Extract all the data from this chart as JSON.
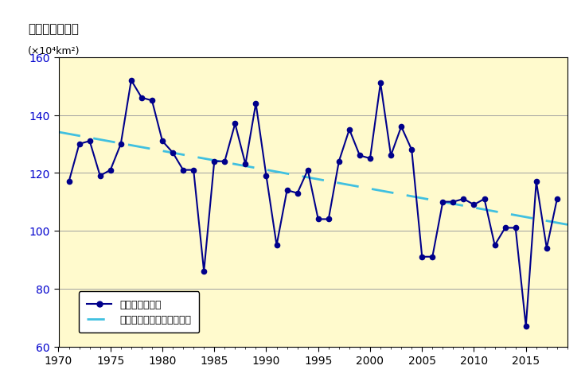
{
  "years": [
    1971,
    1972,
    1973,
    1974,
    1975,
    1976,
    1977,
    1978,
    1979,
    1980,
    1981,
    1982,
    1983,
    1984,
    1985,
    1986,
    1987,
    1988,
    1989,
    1990,
    1991,
    1992,
    1993,
    1994,
    1995,
    1996,
    1997,
    1998,
    1999,
    2000,
    2001,
    2002,
    2003,
    2004,
    2005,
    2006,
    2007,
    2008,
    2009,
    2010,
    2011,
    2012,
    2013,
    2014,
    2015,
    2016,
    2017,
    2018
  ],
  "values": [
    117,
    130,
    131,
    119,
    121,
    130,
    152,
    146,
    145,
    131,
    127,
    121,
    121,
    86,
    124,
    124,
    137,
    123,
    144,
    119,
    95,
    114,
    113,
    121,
    104,
    104,
    124,
    135,
    126,
    125,
    151,
    126,
    136,
    128,
    91,
    91,
    110,
    110,
    111,
    109,
    111,
    95,
    101,
    101,
    67,
    117,
    94,
    111
  ],
  "line_color": "#00008B",
  "trend_color": "#40C0E0",
  "fig_bg_color": "#FFFFFF",
  "plot_bg_color": "#FFFACD",
  "title": "最大海氷域面積",
  "ylabel_unit": "(×10⁴km²)",
  "legend_label1": "最大海氷域面積",
  "legend_label2": "最大海氷域面積の変化傾向",
  "xlim": [
    1970,
    2019
  ],
  "ylim": [
    60,
    160
  ],
  "yticks": [
    60,
    80,
    100,
    120,
    140,
    160
  ],
  "xticks": [
    1970,
    1975,
    1980,
    1985,
    1990,
    1995,
    2000,
    2005,
    2010,
    2015
  ]
}
